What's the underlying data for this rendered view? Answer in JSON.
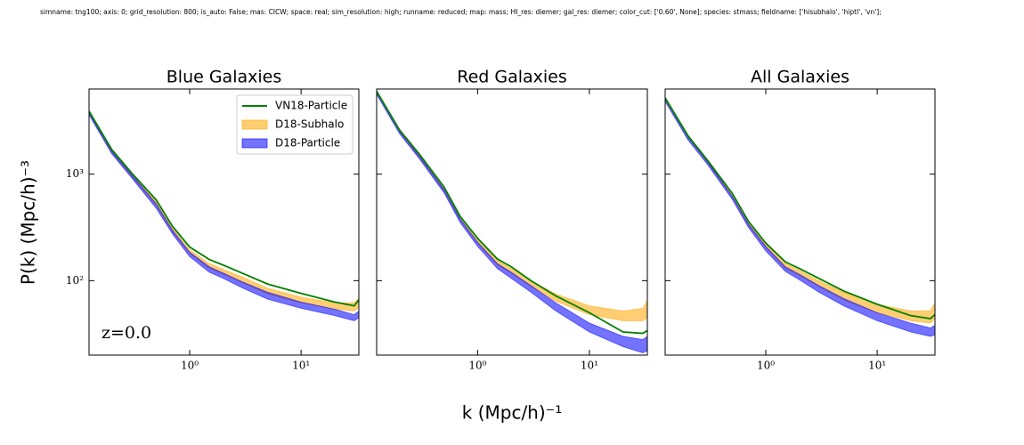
{
  "suptitle": "simname: tng100; axis: 0; grid_resolution: 800; is_auto: False; mas: CICW; space: real; sim_resolution: high; runname: reduced; map: mass; HI_res: diemer; gal_res: diemer; color_cut: ['0.60', None]; species: stmass; fieldname: ['hisubhalo', 'hiptl', 'vn'];",
  "xlabel": "k (Mpc/h)⁻¹",
  "ylabel": "P(k) (Mpc/h)⁻³",
  "chart_data": [
    {
      "type": "line",
      "title": "Blue Galaxies",
      "annotation": "z=0.0",
      "legend": "upper right",
      "xscale": "log",
      "yscale": "log",
      "xlim": [
        0.125,
        33
      ],
      "ylim": [
        20,
        6300
      ],
      "xticks": [
        {
          "value": 1,
          "label": "10⁰"
        },
        {
          "value": 10,
          "label": "10¹"
        }
      ],
      "yticks": [
        {
          "value": 100,
          "label": "10²"
        },
        {
          "value": 1000,
          "label": "10³"
        }
      ],
      "x": [
        0.125,
        0.2,
        0.3,
        0.5,
        0.7,
        1,
        1.5,
        2,
        3,
        5,
        10,
        20,
        30,
        33
      ],
      "series": [
        {
          "name": "VN18-Particle",
          "color": "#008000",
          "values": [
            3900,
            1700,
            1030,
            575,
            325,
            207,
            158,
            140,
            117,
            93,
            76,
            63,
            58,
            66
          ]
        },
        {
          "name": "D18-Subhalo",
          "color": "#ffa500",
          "upper": [
            3900,
            1700,
            1030,
            560,
            315,
            195,
            145,
            128,
            108,
            85,
            70,
            62,
            62,
            68
          ],
          "lower": [
            3700,
            1600,
            960,
            510,
            290,
            180,
            130,
            115,
            95,
            75,
            62,
            54,
            52,
            56
          ]
        },
        {
          "name": "D18-Particle",
          "color": "#0000ff",
          "upper": [
            3800,
            1650,
            1000,
            530,
            300,
            185,
            135,
            118,
            97,
            78,
            63,
            54,
            48,
            52
          ],
          "lower": [
            3600,
            1550,
            930,
            480,
            275,
            168,
            120,
            105,
            85,
            67,
            55,
            47,
            42,
            45
          ]
        }
      ]
    },
    {
      "type": "line",
      "title": "Red Galaxies",
      "xscale": "log",
      "yscale": "log",
      "xlim": [
        0.125,
        33
      ],
      "ylim": [
        20,
        6300
      ],
      "xticks": [
        {
          "value": 1,
          "label": "10⁰"
        },
        {
          "value": 10,
          "label": "10¹"
        }
      ],
      "x": [
        0.125,
        0.2,
        0.3,
        0.5,
        0.7,
        1,
        1.5,
        2,
        3,
        5,
        10,
        20,
        30,
        33
      ],
      "series": [
        {
          "color": "#008000",
          "values": [
            6000,
            2600,
            1550,
            760,
            400,
            250,
            160,
            135,
            100,
            72,
            50,
            33,
            32,
            34
          ]
        },
        {
          "color": "#ffa500",
          "upper": [
            6000,
            2600,
            1550,
            760,
            395,
            245,
            155,
            130,
            100,
            75,
            58,
            52,
            55,
            65
          ],
          "lower": [
            5800,
            2500,
            1450,
            700,
            370,
            225,
            140,
            118,
            88,
            64,
            48,
            42,
            42,
            45
          ]
        },
        {
          "color": "#0000ff",
          "upper": [
            5900,
            2550,
            1500,
            720,
            380,
            230,
            145,
            120,
            90,
            62,
            40,
            30,
            28,
            30
          ],
          "lower": [
            5600,
            2400,
            1400,
            670,
            350,
            210,
            130,
            105,
            78,
            52,
            33,
            24,
            21,
            22
          ]
        }
      ]
    },
    {
      "type": "line",
      "title": "All Galaxies",
      "xscale": "log",
      "yscale": "log",
      "xlim": [
        0.125,
        33
      ],
      "ylim": [
        20,
        6300
      ],
      "xticks": [
        {
          "value": 1,
          "label": "10⁰"
        },
        {
          "value": 10,
          "label": "10¹"
        }
      ],
      "x": [
        0.125,
        0.2,
        0.3,
        0.5,
        0.7,
        1,
        1.5,
        2,
        3,
        5,
        10,
        20,
        30,
        33
      ],
      "series": [
        {
          "color": "#008000",
          "values": [
            5200,
            2300,
            1350,
            660,
            360,
            225,
            150,
            130,
            105,
            80,
            60,
            47,
            44,
            48
          ]
        },
        {
          "color": "#ffa500",
          "upper": [
            5200,
            2300,
            1350,
            650,
            355,
            220,
            145,
            125,
            100,
            78,
            60,
            52,
            52,
            62
          ],
          "lower": [
            5000,
            2200,
            1280,
            610,
            330,
            205,
            130,
            112,
            88,
            66,
            50,
            42,
            40,
            44
          ]
        },
        {
          "color": "#0000ff",
          "upper": [
            5100,
            2250,
            1320,
            620,
            340,
            210,
            135,
            115,
            90,
            68,
            50,
            40,
            36,
            38
          ],
          "lower": [
            4800,
            2100,
            1230,
            580,
            315,
            190,
            122,
            102,
            78,
            58,
            42,
            33,
            30,
            31
          ]
        }
      ]
    }
  ]
}
